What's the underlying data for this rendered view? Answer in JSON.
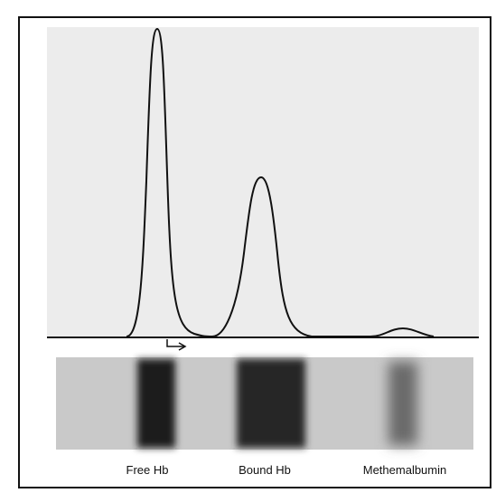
{
  "labels": [
    "Free Hb",
    "Bound Hb",
    "Methemalbumin"
  ]
}
